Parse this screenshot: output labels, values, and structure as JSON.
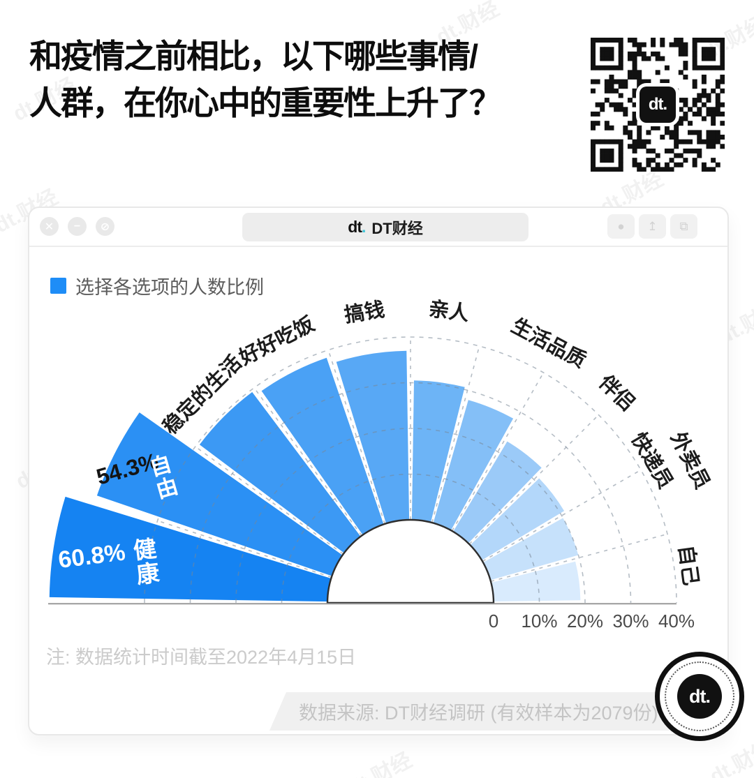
{
  "title": {
    "line1": "和疫情之前相比，以下哪些事情/",
    "line2": "人群，在你心中的重要性上升了？"
  },
  "brand": {
    "short": "dt",
    "dot": ".",
    "site_name": "DT财经"
  },
  "window": {
    "controls": [
      {
        "name": "close-icon",
        "glyph": "✕"
      },
      {
        "name": "minimize-icon",
        "glyph": "−"
      },
      {
        "name": "block-icon",
        "glyph": "⊘"
      }
    ],
    "right_buttons": [
      {
        "name": "tab-circle-icon",
        "glyph": "●"
      },
      {
        "name": "share-icon",
        "glyph": "↥"
      },
      {
        "name": "overlap-windows-icon",
        "glyph": "⧉"
      }
    ]
  },
  "legend": {
    "label": "选择各选项的人数比例",
    "swatch_color": "#1e8df7"
  },
  "chart_data": {
    "type": "bar",
    "variant": "polar-fan (semicircle, bars radiate from inner hole)",
    "title": "选择各选项的人数比例",
    "unit": "%",
    "categories": [
      "健康",
      "自由",
      "稳定的生活",
      "好好吃饭",
      "搞钱",
      "亲人",
      "生活品质",
      "伴侣",
      "快递员",
      "外卖员",
      "自己"
    ],
    "values": [
      60.8,
      54.3,
      39.5,
      38.5,
      37,
      30.5,
      28,
      23,
      21,
      20,
      19
    ],
    "highlights": [
      {
        "index": 0,
        "label": "60.8%"
      },
      {
        "index": 1,
        "label": "54.3%"
      }
    ],
    "colors": [
      "#1583f2",
      "#2b90f4",
      "#3c99f4",
      "#4aa1f5",
      "#58a8f5",
      "#6db4f6",
      "#84bff7",
      "#9bcaf8",
      "#b3d7fa",
      "#c6e1fb",
      "#d9ebfd"
    ],
    "axis": {
      "ticks": [
        0,
        10,
        20,
        30,
        40
      ],
      "tick_labels": [
        "0",
        "10%",
        "20%",
        "30%",
        "40%"
      ],
      "rmax": 40
    },
    "layout_hints": {
      "grid": "dashed",
      "span_degrees": 180,
      "left_sector_count": 5,
      "legend_position": "top-left"
    }
  },
  "note": {
    "text": "注: 数据统计时间截至2022年4月15日"
  },
  "source": {
    "text": "数据来源: DT财经调研 (有效样本为2079份)"
  },
  "watermark": "dt.财经"
}
